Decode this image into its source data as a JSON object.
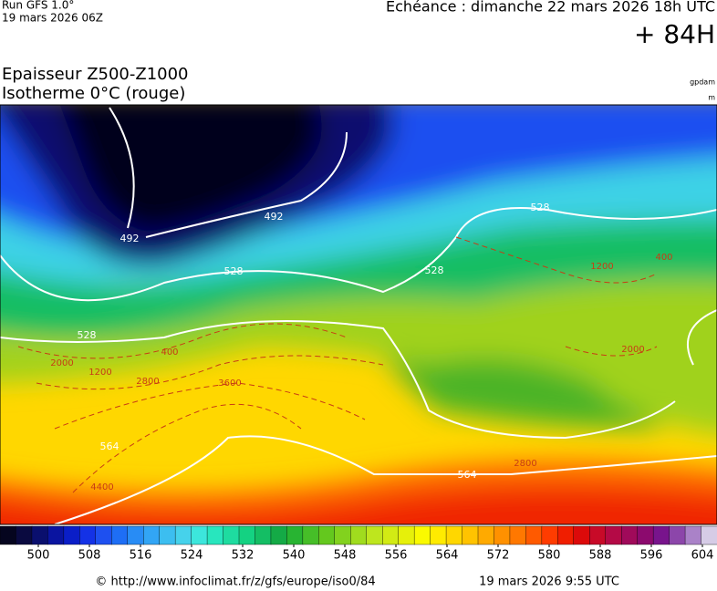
{
  "header": {
    "model": "Run GFS 1.0°",
    "run": "19 mars 2026 06Z",
    "valid": "Echéance : dimanche 22 mars 2026 18h UTC",
    "lead": "+ 84H"
  },
  "title": {
    "line1": "Epaisseur Z500-Z1000",
    "line2": "Isotherme 0°C (rouge)",
    "unit1": "gpdam",
    "unit2": "m"
  },
  "map": {
    "thickness_labels": [
      492,
      492,
      528,
      528,
      528,
      528,
      564,
      564
    ],
    "isotherm_labels": [
      400,
      400,
      1200,
      1200,
      2000,
      2000,
      2800,
      2800,
      3600,
      4400
    ]
  },
  "colorbar": {
    "colors": [
      "#05051f",
      "#0a0a40",
      "#0a0f6e",
      "#0a14a0",
      "#0a1ec8",
      "#1432e6",
      "#1e50f0",
      "#1e6ef5",
      "#288cf5",
      "#32a5f5",
      "#3cbef0",
      "#46d2eb",
      "#3ce6dc",
      "#28e6be",
      "#1edca0",
      "#14d282",
      "#14be64",
      "#14aa46",
      "#28b432",
      "#46be28",
      "#64c81e",
      "#82d21e",
      "#a0dc1e",
      "#bee61e",
      "#d2eb14",
      "#e6f00a",
      "#fafa00",
      "#ffeb00",
      "#ffd700",
      "#ffc300",
      "#ffaa00",
      "#ff9100",
      "#ff7800",
      "#ff5a00",
      "#ff3c00",
      "#f01e00",
      "#dc0a0a",
      "#c80a28",
      "#b40a46",
      "#a00a5a",
      "#8c0a6e",
      "#78148c",
      "#8c46aa",
      "#aa82c8",
      "#d6cce6"
    ],
    "ticks": [
      500,
      508,
      516,
      524,
      532,
      540,
      548,
      556,
      564,
      572,
      580,
      588,
      596,
      604
    ]
  },
  "footer": {
    "source": "© http://www.infoclimat.fr/z/gfs/europe/iso0/84",
    "date": "19 mars 2026  9:55 UTC"
  }
}
